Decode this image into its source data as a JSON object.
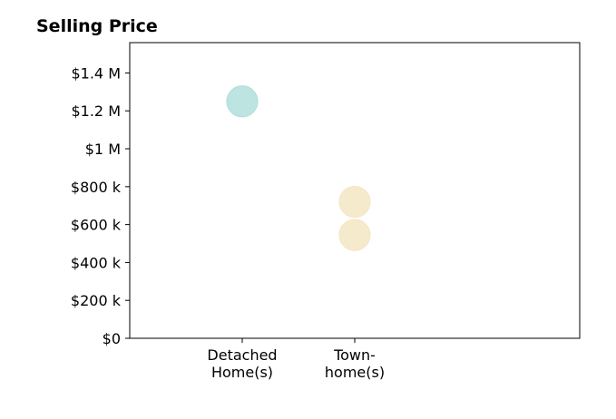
{
  "chart_data": {
    "type": "scatter",
    "title": "Selling Price",
    "xlabel": "",
    "ylabel": "",
    "categories": [
      [
        "Detached",
        "Home(s)"
      ],
      [
        "Town-",
        "home(s)"
      ]
    ],
    "points": [
      {
        "category": 0,
        "value": 1250000,
        "color": "#b2dfdb"
      },
      {
        "category": 1,
        "value": 720000,
        "color": "#f5e6c4"
      },
      {
        "category": 1,
        "value": 545000,
        "color": "#f5e6c4"
      }
    ],
    "yticks": [
      {
        "value": 0,
        "label": "$0"
      },
      {
        "value": 200000,
        "label": "$200 k"
      },
      {
        "value": 400000,
        "label": "$400 k"
      },
      {
        "value": 600000,
        "label": "$600 k"
      },
      {
        "value": 800000,
        "label": "$800 k"
      },
      {
        "value": 1000000,
        "label": "$1 M"
      },
      {
        "value": 1200000,
        "label": "$1.2 M"
      },
      {
        "value": 1400000,
        "label": "$1.4 M"
      }
    ],
    "ylim": [
      0,
      1560000
    ],
    "grid": false,
    "legend": "none"
  }
}
